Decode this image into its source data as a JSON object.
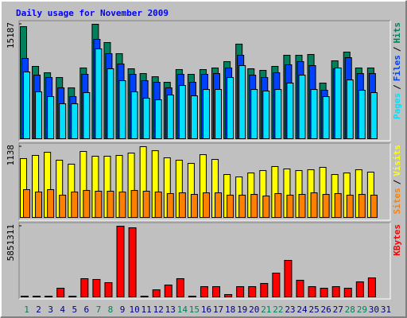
{
  "title": "Daily usage for November 2009",
  "legend_separator": "/",
  "chart_data": [
    {
      "type": "bar",
      "ylim": [
        0,
        15187
      ],
      "yticks": [
        15187
      ],
      "series": [
        {
          "name": "Hits",
          "color": "#00805c",
          "values": [
            14873,
            9636,
            8798,
            8170,
            6808,
            9427,
            15187,
            12778,
            11312,
            9322,
            8693,
            8274,
            7541,
            9217,
            8589,
            9217,
            9427,
            10265,
            12569,
            9322,
            9112,
            9636,
            11102,
            11102,
            11207,
            7437,
            10369,
            11521,
            9427,
            9427,
            0
          ]
        },
        {
          "name": "Files",
          "color": "#0040ff",
          "values": [
            10683,
            8484,
            8170,
            6808,
            5656,
            8589,
            13197,
            11312,
            9950,
            8589,
            7751,
            7541,
            6808,
            8589,
            7541,
            8589,
            8693,
            9427,
            11102,
            8484,
            8170,
            8798,
            9846,
            10265,
            9741,
            6494,
            9322,
            10788,
            8693,
            8693,
            0
          ]
        },
        {
          "name": "Pages",
          "color": "#00e0ff",
          "values": [
            8903,
            6284,
            5656,
            4713,
            4713,
            6180,
            11940,
            9322,
            7751,
            6284,
            5446,
            5237,
            5865,
            7122,
            5761,
            6599,
            6599,
            8170,
            9741,
            6599,
            6389,
            6599,
            7437,
            8484,
            6599,
            5656,
            9427,
            7855,
            6494,
            6180,
            0
          ]
        }
      ]
    },
    {
      "type": "bar",
      "ylim": [
        0,
        1138
      ],
      "yticks": [
        1138
      ],
      "series": [
        {
          "name": "Visits",
          "color": "#ffff00",
          "values": [
            948,
            999,
            1049,
            923,
            860,
            1062,
            986,
            986,
            999,
            1036,
            1138,
            1074,
            961,
            923,
            872,
            1011,
            935,
            695,
            657,
            720,
            758,
            822,
            784,
            758,
            771,
            809,
            695,
            720,
            771,
            733,
            0
          ]
        },
        {
          "name": "Sites",
          "color": "#ff8000",
          "values": [
            455,
            417,
            455,
            367,
            417,
            442,
            430,
            430,
            417,
            442,
            430,
            417,
            392,
            404,
            379,
            404,
            404,
            367,
            367,
            379,
            354,
            392,
            367,
            379,
            404,
            379,
            392,
            367,
            379,
            367,
            0
          ]
        }
      ]
    },
    {
      "type": "bar",
      "ylim": [
        0,
        5851311
      ],
      "yticks": [
        5851311
      ],
      "categories": [
        "1",
        "2",
        "3",
        "4",
        "5",
        "6",
        "7",
        "8",
        "9",
        "10",
        "11",
        "12",
        "13",
        "14",
        "15",
        "16",
        "17",
        "18",
        "19",
        "20",
        "21",
        "22",
        "23",
        "24",
        "25",
        "26",
        "27",
        "28",
        "29",
        "30",
        "31"
      ],
      "label_color": "#000080",
      "highlight": {
        "color": "#00805c",
        "categories": [
          "1",
          "7",
          "8",
          "14",
          "15",
          "21",
          "22",
          "28",
          "29"
        ]
      },
      "series": [
        {
          "name": "KBytes",
          "color": "#ff0000",
          "values": [
            130030,
            130030,
            130030,
            780180,
            130030,
            1560360,
            1495345,
            1235285,
            5851311,
            5721320,
            130030,
            650150,
            1040240,
            1560360,
            130030,
            910210,
            910210,
            260060,
            910210,
            910210,
            1170270,
            2015465,
            3055705,
            1430330,
            910210,
            780180,
            910210,
            780180,
            1300300,
            1625375,
            0
          ]
        }
      ]
    }
  ]
}
